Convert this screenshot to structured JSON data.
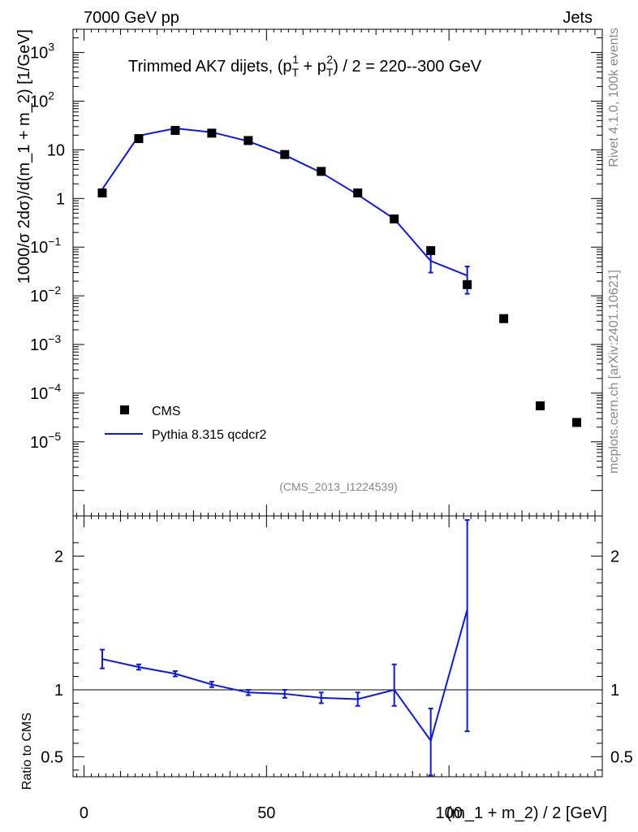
{
  "header": {
    "left": "7000 GeV pp",
    "right": "Jets"
  },
  "side": {
    "rivet": "Rivet 4.1.0,  100k events",
    "mcplots": "mcplots.cern.ch [arXiv:2401.10621]"
  },
  "chart_data": {
    "type": "line",
    "title": "Trimmed AK7 dijets, (p_T^1 + p_T^2) / 2 = 220--300 GeV",
    "title_parts": {
      "a": "Trimmed AK7 dijets, (p",
      "t1": "T",
      "s1": "1",
      "b": " + p",
      "t2": "T",
      "s2": "2",
      "c": ") / 2 = 220--300 GeV"
    },
    "analysis": "(CMS_2013_I1224539)",
    "ylabel": "1000/σ  2dσ)/d(m_1 + m_2) [1/GeV]",
    "ylabel_ratio": "Ratio to CMS",
    "xlabel": "(m_1 + m_2) / 2 [GeV]",
    "xlim": [
      -3,
      142
    ],
    "ylim_log": [
      3e-07,
      3000
    ],
    "ratio_ylim": [
      0.35,
      2.3
    ],
    "x_ticks": [
      "0",
      "50",
      "100"
    ],
    "x_tick_values": [
      0,
      50,
      100
    ],
    "y_ticks": [
      "10^-5",
      "10^-4",
      "10^-3",
      "10^-2",
      "10^-1",
      "1",
      "10",
      "10^2",
      "10^3"
    ],
    "ratio_ticks": [
      "0.5",
      "1",
      "2"
    ],
    "ratio_tick_values": [
      0.5,
      1,
      2
    ],
    "legend": [
      "CMS",
      "Pythia 8.315 qcdcr2"
    ],
    "colors": {
      "data": "#000000",
      "mc": "#0b18e8"
    },
    "series": [
      {
        "name": "CMS",
        "x": [
          5,
          15,
          25,
          35,
          45,
          55,
          65,
          75,
          85,
          95,
          105,
          115,
          125,
          135
        ],
        "y": [
          1.3,
          17,
          25,
          22,
          15.5,
          8,
          3.6,
          1.3,
          0.38,
          0.085,
          0.017,
          0.0034,
          5.5e-05,
          2.5e-05
        ]
      },
      {
        "name": "Pythia 8.315 qcdcr2",
        "x": [
          5,
          15,
          25,
          35,
          45,
          55,
          65,
          75,
          85,
          95,
          105
        ],
        "y": [
          1.55,
          19.5,
          27.5,
          23,
          15,
          7.8,
          3.4,
          1.2,
          0.38,
          0.052,
          0.026
        ],
        "err_low": [
          null,
          null,
          null,
          null,
          null,
          null,
          null,
          null,
          null,
          0.03,
          0.011
        ],
        "err_high": [
          null,
          null,
          null,
          null,
          null,
          null,
          null,
          null,
          null,
          0.074,
          0.04
        ]
      }
    ],
    "ratio": {
      "x": [
        5,
        15,
        25,
        35,
        45,
        55,
        65,
        75,
        85,
        95,
        105
      ],
      "y": [
        1.23,
        1.17,
        1.12,
        1.04,
        0.98,
        0.97,
        0.94,
        0.93,
        1.0,
        0.62,
        1.6
      ],
      "err_low": [
        1.16,
        1.15,
        1.1,
        1.02,
        0.96,
        0.94,
        0.9,
        0.88,
        0.88,
        0.36,
        0.69
      ],
      "err_high": [
        1.3,
        1.19,
        1.14,
        1.06,
        1.0,
        1.0,
        0.98,
        0.98,
        1.19,
        0.86,
        2.27
      ]
    }
  }
}
